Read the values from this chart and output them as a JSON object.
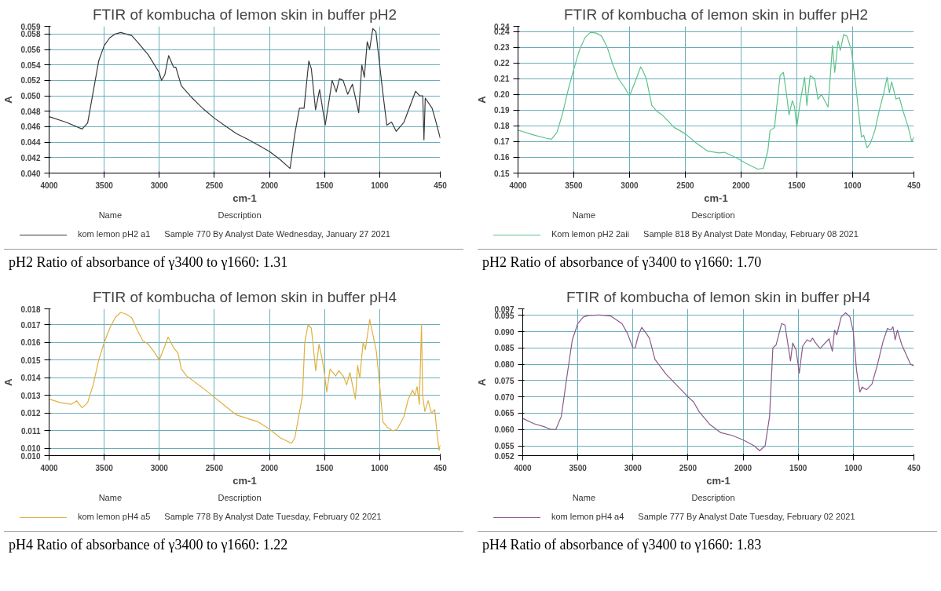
{
  "chart_data": [
    {
      "type": "line",
      "title": "FTIR of kombucha of lemon skin in buffer pH2",
      "xlabel": "cm-1",
      "ylabel": "A",
      "grid": true,
      "legend": "bottom",
      "xlim": [
        4000,
        450
      ],
      "xticks": [
        4000,
        3500,
        3000,
        2500,
        2000,
        1500,
        1000,
        450
      ],
      "ylim": [
        0.04,
        0.059
      ],
      "yticks": [
        {
          "value": 0.04,
          "label": "0.040"
        },
        {
          "value": 0.042,
          "label": "0.042"
        },
        {
          "value": 0.044,
          "label": "0.044"
        },
        {
          "value": 0.046,
          "label": "0.046"
        },
        {
          "value": 0.048,
          "label": "0.048"
        },
        {
          "value": 0.05,
          "label": "0.050"
        },
        {
          "value": 0.052,
          "label": "0.052"
        },
        {
          "value": 0.054,
          "label": "0.054"
        },
        {
          "value": 0.056,
          "label": "0.056"
        },
        {
          "value": 0.058,
          "label": "0.058"
        },
        {
          "value": 0.059,
          "label": "0.059"
        }
      ],
      "annotations": [
        "Name",
        "Description",
        "Sample 770 By Analyst Date Wednesday, January 27 2021",
        "pH2 Ratio of absorbance of γ3400 to γ1660: 1.31"
      ],
      "series": [
        {
          "name": "kom lemon pH2 a1",
          "color": "#3a3a3a",
          "x": [
            4000,
            3850,
            3700,
            3650,
            3600,
            3550,
            3500,
            3450,
            3400,
            3350,
            3300,
            3250,
            3200,
            3100,
            3000,
            2980,
            2950,
            2915,
            2870,
            2850,
            2800,
            2700,
            2600,
            2500,
            2400,
            2300,
            2200,
            2100,
            2000,
            1900,
            1813,
            1771,
            1728,
            1686,
            1643,
            1620,
            1582,
            1545,
            1494,
            1431,
            1394,
            1366,
            1332,
            1290,
            1247,
            1190,
            1162,
            1139,
            1113,
            1091,
            1062,
            1034,
            972,
            935,
            892,
            850,
            779,
            674,
            637,
            609,
            598,
            586,
            524,
            496,
            450
          ],
          "values": [
            0.0473,
            0.0466,
            0.0457,
            0.0465,
            0.0505,
            0.0545,
            0.0565,
            0.0575,
            0.058,
            0.0582,
            0.058,
            0.0578,
            0.057,
            0.0553,
            0.053,
            0.052,
            0.0527,
            0.0552,
            0.0537,
            0.0537,
            0.0513,
            0.0497,
            0.0483,
            0.0471,
            0.0461,
            0.0451,
            0.0444,
            0.0436,
            0.0428,
            0.0417,
            0.0406,
            0.045,
            0.0484,
            0.0484,
            0.0545,
            0.0535,
            0.0482,
            0.0508,
            0.0462,
            0.052,
            0.0505,
            0.0522,
            0.052,
            0.0502,
            0.0515,
            0.0478,
            0.054,
            0.0524,
            0.057,
            0.056,
            0.0587,
            0.0583,
            0.0505,
            0.0462,
            0.0466,
            0.0454,
            0.0466,
            0.0506,
            0.05,
            0.05,
            0.0443,
            0.0497,
            0.0484,
            0.047,
            0.0445
          ]
        }
      ]
    },
    {
      "type": "line",
      "title": "FTIR of kombucha of lemon skin in buffer pH2",
      "xlabel": "cm-1",
      "ylabel": "A",
      "grid": true,
      "legend": "bottom",
      "xlim": [
        4000,
        450
      ],
      "xticks": [
        4000,
        3500,
        3000,
        2500,
        2000,
        1500,
        1000,
        450
      ],
      "ylim": [
        0.15,
        0.2433
      ],
      "yticks": [
        0.15,
        0.16,
        0.17,
        0.18,
        0.19,
        {
          "value": 0.2,
          "label": "0.20"
        },
        0.21,
        0.22,
        0.23,
        0.24,
        {
          "value": 0.2433,
          "label": "0.24"
        }
      ],
      "annotations": [
        "Name",
        "Description",
        "Sample 818 By Analyst Date Monday, February 08 2021",
        "pH2 Ratio of absorbance of γ3400 to γ1660: 1.70"
      ],
      "series": [
        {
          "name": "Kom lemon pH2 2aii",
          "color": "#5ec28a",
          "x": [
            4000,
            3850,
            3750,
            3700,
            3650,
            3600,
            3550,
            3500,
            3450,
            3400,
            3350,
            3300,
            3250,
            3200,
            3150,
            3100,
            3050,
            3000,
            2950,
            2900,
            2880,
            2850,
            2800,
            2750,
            2700,
            2600,
            2500,
            2400,
            2300,
            2200,
            2150,
            2050,
            1950,
            1850,
            1800,
            1760,
            1740,
            1700,
            1650,
            1620,
            1590,
            1570,
            1540,
            1520,
            1500,
            1470,
            1430,
            1410,
            1380,
            1340,
            1310,
            1280,
            1250,
            1220,
            1180,
            1160,
            1130,
            1110,
            1080,
            1050,
            1010,
            970,
            940,
            920,
            900,
            870,
            840,
            800,
            760,
            720,
            690,
            670,
            650,
            610,
            580,
            550,
            500,
            470,
            450
          ],
          "values": [
            0.1773,
            0.174,
            0.1722,
            0.1715,
            0.176,
            0.188,
            0.203,
            0.216,
            0.228,
            0.236,
            0.2395,
            0.239,
            0.237,
            0.23,
            0.219,
            0.21,
            0.205,
            0.199,
            0.208,
            0.2175,
            0.215,
            0.21,
            0.193,
            0.189,
            0.1865,
            0.179,
            0.175,
            0.169,
            0.164,
            0.1628,
            0.1632,
            0.16,
            0.156,
            0.1525,
            0.153,
            0.164,
            0.177,
            0.179,
            0.212,
            0.214,
            0.199,
            0.187,
            0.196,
            0.192,
            0.179,
            0.195,
            0.211,
            0.193,
            0.212,
            0.21,
            0.197,
            0.2,
            0.196,
            0.192,
            0.231,
            0.214,
            0.234,
            0.228,
            0.238,
            0.237,
            0.228,
            0.205,
            0.185,
            0.173,
            0.174,
            0.166,
            0.169,
            0.177,
            0.19,
            0.201,
            0.211,
            0.201,
            0.208,
            0.197,
            0.198,
            0.19,
            0.179,
            0.17,
            0.173
          ]
        }
      ]
    },
    {
      "type": "line",
      "title": "FTIR of kombucha of lemon skin in buffer pH4",
      "xlabel": "cm-1",
      "ylabel": "A",
      "grid": true,
      "legend": "bottom",
      "xlim": [
        4000,
        450
      ],
      "xticks": [
        4000,
        3500,
        3000,
        2500,
        2000,
        1500,
        1000,
        450
      ],
      "ylim": [
        0.0096,
        0.0179
      ],
      "yticks": [
        {
          "value": 0.0096,
          "label": "0.010"
        },
        {
          "value": 0.01,
          "label": "0.010"
        },
        {
          "value": 0.011,
          "label": "0.011"
        },
        {
          "value": 0.012,
          "label": "0.012"
        },
        {
          "value": 0.013,
          "label": "0.013"
        },
        {
          "value": 0.014,
          "label": "0.014"
        },
        {
          "value": 0.015,
          "label": "0.015"
        },
        {
          "value": 0.016,
          "label": "0.016"
        },
        {
          "value": 0.017,
          "label": "0.017"
        },
        {
          "value": 0.0179,
          "label": "0.018"
        }
      ],
      "annotations": [
        "Name",
        "Description",
        "Sample 778 By Analyst Date Tuesday, February 02 2021",
        "pH4 Ratio of absorbance of γ3400 to γ1660: 1.22"
      ],
      "series": [
        {
          "name": "kom lemon pH4 a5",
          "color": "#e0b040",
          "x": [
            4000,
            3900,
            3800,
            3750,
            3700,
            3650,
            3600,
            3550,
            3500,
            3450,
            3400,
            3350,
            3300,
            3250,
            3200,
            3150,
            3100,
            3050,
            3000,
            2950,
            2920,
            2870,
            2830,
            2800,
            2750,
            2600,
            2500,
            2400,
            2300,
            2200,
            2100,
            2000,
            1900,
            1800,
            1770,
            1700,
            1680,
            1650,
            1620,
            1580,
            1550,
            1520,
            1500,
            1480,
            1450,
            1400,
            1370,
            1330,
            1300,
            1270,
            1220,
            1200,
            1180,
            1150,
            1130,
            1090,
            1060,
            1030,
            1000,
            970,
            930,
            880,
            840,
            780,
            740,
            700,
            680,
            660,
            640,
            620,
            610,
            590,
            560,
            530,
            500,
            480,
            460,
            450
          ],
          "values": [
            0.0128,
            0.0126,
            0.0125,
            0.0127,
            0.0123,
            0.0126,
            0.0136,
            0.015,
            0.016,
            0.0168,
            0.0174,
            0.0177,
            0.0176,
            0.0174,
            0.0167,
            0.0161,
            0.0159,
            0.0155,
            0.015,
            0.0158,
            0.0163,
            0.0157,
            0.0154,
            0.0145,
            0.0141,
            0.0134,
            0.0129,
            0.0124,
            0.0119,
            0.0117,
            0.0115,
            0.0111,
            0.0106,
            0.0103,
            0.0106,
            0.013,
            0.016,
            0.017,
            0.0168,
            0.0144,
            0.0159,
            0.015,
            0.0142,
            0.0132,
            0.0145,
            0.0141,
            0.0144,
            0.0141,
            0.0136,
            0.0143,
            0.0128,
            0.0147,
            0.014,
            0.016,
            0.0156,
            0.0173,
            0.0164,
            0.0155,
            0.0136,
            0.0115,
            0.0112,
            0.011,
            0.0111,
            0.0118,
            0.0128,
            0.0133,
            0.013,
            0.0135,
            0.0125,
            0.017,
            0.013,
            0.0121,
            0.0127,
            0.012,
            0.0122,
            0.0109,
            0.0099,
            0.0102
          ]
        }
      ]
    },
    {
      "type": "line",
      "title": "FTIR of kombucha of lemon skin in buffer pH4",
      "xlabel": "cm-1",
      "ylabel": "A",
      "grid": true,
      "legend": "bottom",
      "xlim": [
        4000,
        450
      ],
      "xticks": [
        4000,
        3500,
        3000,
        2500,
        2000,
        1500,
        1000,
        450
      ],
      "ylim": [
        0.052,
        0.097
      ],
      "yticks": [
        {
          "value": 0.052,
          "label": "0.052"
        },
        {
          "value": 0.055,
          "label": "0.055"
        },
        {
          "value": 0.06,
          "label": "0.060"
        },
        {
          "value": 0.065,
          "label": "0.065"
        },
        {
          "value": 0.07,
          "label": "0.070"
        },
        {
          "value": 0.075,
          "label": "0.075"
        },
        {
          "value": 0.08,
          "label": "0.080"
        },
        {
          "value": 0.085,
          "label": "0.085"
        },
        {
          "value": 0.09,
          "label": "0.090"
        },
        {
          "value": 0.095,
          "label": "0.095"
        },
        {
          "value": 0.097,
          "label": "0.097"
        }
      ],
      "annotations": [
        "Name",
        "Description",
        "Sample 777 By Analyst Date Tuesday, February 02 2021",
        "pH4 Ratio of absorbance of γ3400 to γ1660: 1.83"
      ],
      "series": [
        {
          "name": "kom lemon pH4 a4",
          "color": "#8a5a8a",
          "x": [
            4000,
            3900,
            3800,
            3750,
            3700,
            3650,
            3600,
            3550,
            3500,
            3450,
            3400,
            3300,
            3200,
            3100,
            3050,
            3000,
            2980,
            2950,
            2920,
            2880,
            2850,
            2800,
            2700,
            2600,
            2500,
            2450,
            2400,
            2300,
            2200,
            2100,
            2000,
            1900,
            1850,
            1800,
            1760,
            1730,
            1700,
            1650,
            1620,
            1570,
            1550,
            1520,
            1490,
            1460,
            1420,
            1390,
            1370,
            1330,
            1300,
            1270,
            1220,
            1190,
            1170,
            1150,
            1110,
            1070,
            1030,
            1000,
            970,
            940,
            920,
            880,
            830,
            780,
            730,
            690,
            660,
            640,
            620,
            600,
            560,
            520,
            480,
            450
          ],
          "values": [
            0.0634,
            0.0618,
            0.0608,
            0.0601,
            0.06,
            0.064,
            0.076,
            0.0875,
            0.0925,
            0.0945,
            0.095,
            0.0951,
            0.0948,
            0.0925,
            0.0895,
            0.085,
            0.085,
            0.089,
            0.0913,
            0.0895,
            0.088,
            0.0815,
            0.077,
            0.0735,
            0.07,
            0.0685,
            0.0655,
            0.0615,
            0.059,
            0.0582,
            0.0568,
            0.055,
            0.0535,
            0.055,
            0.064,
            0.085,
            0.086,
            0.0925,
            0.092,
            0.081,
            0.0865,
            0.0845,
            0.0773,
            0.0855,
            0.0875,
            0.087,
            0.088,
            0.086,
            0.0848,
            0.086,
            0.0878,
            0.084,
            0.0905,
            0.089,
            0.0945,
            0.0958,
            0.0945,
            0.09,
            0.078,
            0.0715,
            0.073,
            0.0722,
            0.074,
            0.08,
            0.087,
            0.091,
            0.0905,
            0.0915,
            0.0875,
            0.0905,
            0.086,
            0.083,
            0.08,
            0.0795
          ]
        }
      ]
    }
  ]
}
